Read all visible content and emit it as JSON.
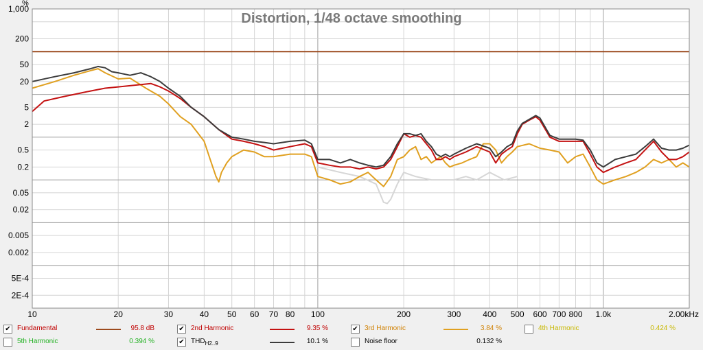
{
  "chart_data": {
    "type": "line",
    "title": "Distortion, 1/48 octave smoothing",
    "ylabel": "%",
    "xlabel": "",
    "x_unit": "kHz",
    "x_scale": "log",
    "y_scale": "log",
    "xlim": [
      10,
      2000
    ],
    "ylim": [
      0.0001,
      1000
    ],
    "grid": true,
    "x_ticks": [
      {
        "v": 10,
        "label": "10"
      },
      {
        "v": 20,
        "label": "20"
      },
      {
        "v": 30,
        "label": "30"
      },
      {
        "v": 40,
        "label": "40"
      },
      {
        "v": 50,
        "label": "50"
      },
      {
        "v": 60,
        "label": "60"
      },
      {
        "v": 70,
        "label": "70"
      },
      {
        "v": 80,
        "label": "80"
      },
      {
        "v": 100,
        "label": "100"
      },
      {
        "v": 200,
        "label": "200"
      },
      {
        "v": 300,
        "label": "300"
      },
      {
        "v": 400,
        "label": "400"
      },
      {
        "v": 500,
        "label": "500"
      },
      {
        "v": 600,
        "label": "600"
      },
      {
        "v": 700,
        "label": "700"
      },
      {
        "v": 800,
        "label": "800"
      },
      {
        "v": 1000,
        "label": "1.0k"
      },
      {
        "v": 2000,
        "label": "2.00kHz"
      }
    ],
    "y_ticks": [
      {
        "v": 1000,
        "label": "1,000"
      },
      {
        "v": 200,
        "label": "200"
      },
      {
        "v": 50,
        "label": "50"
      },
      {
        "v": 20,
        "label": "20"
      },
      {
        "v": 5,
        "label": "5"
      },
      {
        "v": 2,
        "label": "2"
      },
      {
        "v": 0.5,
        "label": "0.5"
      },
      {
        "v": 0.2,
        "label": "0.2"
      },
      {
        "v": 0.05,
        "label": "0.05"
      },
      {
        "v": 0.02,
        "label": "0.02"
      },
      {
        "v": 0.005,
        "label": "0.005"
      },
      {
        "v": 0.002,
        "label": "0.002"
      },
      {
        "v": 0.0005,
        "label": "5E-4"
      },
      {
        "v": 0.0002,
        "label": "2E-4"
      }
    ],
    "series": [
      {
        "name": "Fundamental",
        "color": "#9c4a1e",
        "x": [
          10,
          2000
        ],
        "y": [
          100,
          100
        ]
      },
      {
        "name": "Noise floor",
        "color": "#d6d6d6",
        "x": [
          100,
          120,
          140,
          160,
          170,
          175,
          180,
          190,
          200,
          220,
          250,
          270,
          300,
          330,
          360,
          400,
          450,
          500
        ],
        "y": [
          0.2,
          0.15,
          0.12,
          0.08,
          0.03,
          0.028,
          0.035,
          0.08,
          0.15,
          0.12,
          0.1,
          0.1,
          0.1,
          0.12,
          0.1,
          0.15,
          0.1,
          0.12
        ]
      },
      {
        "name": "3rd Harmonic",
        "color": "#e0a020",
        "x": [
          10,
          12,
          14,
          16,
          17,
          18,
          20,
          22,
          25,
          28,
          30,
          33,
          36,
          40,
          42,
          44,
          45,
          46,
          48,
          50,
          55,
          60,
          65,
          70,
          80,
          90,
          95,
          100,
          110,
          120,
          130,
          140,
          150,
          160,
          170,
          180,
          190,
          200,
          210,
          220,
          230,
          240,
          250,
          260,
          270,
          280,
          290,
          300,
          320,
          340,
          360,
          380,
          400,
          420,
          440,
          460,
          480,
          500,
          550,
          600,
          650,
          700,
          750,
          800,
          850,
          900,
          950,
          1000,
          1100,
          1200,
          1300,
          1400,
          1500,
          1600,
          1700,
          1800,
          1900,
          2000
        ],
        "y": [
          14,
          20,
          28,
          36,
          40,
          32,
          23,
          24,
          14,
          9,
          6,
          3,
          2,
          0.8,
          0.3,
          0.12,
          0.09,
          0.15,
          0.25,
          0.35,
          0.5,
          0.45,
          0.35,
          0.35,
          0.4,
          0.4,
          0.35,
          0.12,
          0.1,
          0.08,
          0.09,
          0.12,
          0.15,
          0.1,
          0.07,
          0.12,
          0.3,
          0.35,
          0.5,
          0.6,
          0.3,
          0.35,
          0.25,
          0.3,
          0.35,
          0.25,
          0.2,
          0.22,
          0.25,
          0.3,
          0.35,
          0.7,
          0.7,
          0.5,
          0.25,
          0.35,
          0.45,
          0.6,
          0.7,
          0.55,
          0.5,
          0.45,
          0.25,
          0.35,
          0.4,
          0.2,
          0.1,
          0.08,
          0.1,
          0.12,
          0.15,
          0.2,
          0.3,
          0.25,
          0.3,
          0.2,
          0.25,
          0.2
        ]
      },
      {
        "name": "2nd Harmonic",
        "color": "#c41212",
        "x": [
          10,
          11,
          12,
          13,
          14,
          15,
          16,
          17,
          18,
          20,
          22,
          24,
          26,
          28,
          30,
          33,
          36,
          40,
          45,
          50,
          55,
          60,
          65,
          70,
          80,
          90,
          95,
          100,
          110,
          120,
          130,
          140,
          150,
          160,
          170,
          180,
          190,
          200,
          210,
          220,
          230,
          240,
          250,
          260,
          270,
          280,
          290,
          300,
          330,
          360,
          400,
          420,
          440,
          460,
          480,
          500,
          520,
          550,
          580,
          600,
          650,
          700,
          750,
          800,
          850,
          900,
          950,
          1000,
          1100,
          1200,
          1300,
          1400,
          1500,
          1600,
          1700,
          1800,
          1900,
          2000
        ],
        "y": [
          4,
          7,
          8,
          9,
          10,
          11,
          12,
          13,
          14,
          15,
          16,
          17,
          18,
          15,
          12,
          8,
          5,
          3,
          1.5,
          0.9,
          0.8,
          0.7,
          0.6,
          0.5,
          0.6,
          0.7,
          0.6,
          0.25,
          0.22,
          0.2,
          0.2,
          0.18,
          0.2,
          0.18,
          0.2,
          0.3,
          0.6,
          1.2,
          1.0,
          1.1,
          1.0,
          0.7,
          0.5,
          0.3,
          0.3,
          0.35,
          0.3,
          0.35,
          0.45,
          0.6,
          0.45,
          0.25,
          0.4,
          0.5,
          0.6,
          1.2,
          2.0,
          2.5,
          3.0,
          2.5,
          1.0,
          0.8,
          0.8,
          0.8,
          0.8,
          0.4,
          0.2,
          0.15,
          0.2,
          0.25,
          0.3,
          0.5,
          0.8,
          0.45,
          0.3,
          0.3,
          0.35,
          0.45
        ]
      },
      {
        "name": "THDH2..9",
        "color": "#3c3c3c",
        "x": [
          10,
          12,
          14,
          16,
          17,
          18,
          19,
          20,
          22,
          24,
          26,
          28,
          30,
          33,
          36,
          40,
          45,
          50,
          55,
          60,
          65,
          70,
          80,
          90,
          95,
          100,
          110,
          120,
          130,
          140,
          150,
          160,
          170,
          180,
          190,
          200,
          210,
          220,
          230,
          240,
          250,
          260,
          270,
          280,
          290,
          300,
          330,
          360,
          400,
          420,
          440,
          460,
          480,
          500,
          520,
          550,
          580,
          600,
          650,
          700,
          750,
          800,
          850,
          900,
          950,
          1000,
          1100,
          1200,
          1300,
          1400,
          1500,
          1600,
          1700,
          1800,
          1900,
          2000
        ],
        "y": [
          20,
          26,
          32,
          40,
          45,
          42,
          34,
          32,
          28,
          32,
          26,
          20,
          14,
          9,
          5,
          3,
          1.5,
          1.0,
          0.9,
          0.8,
          0.75,
          0.7,
          0.8,
          0.85,
          0.7,
          0.3,
          0.3,
          0.25,
          0.3,
          0.25,
          0.22,
          0.2,
          0.22,
          0.35,
          0.7,
          1.2,
          1.2,
          1.1,
          1.2,
          0.8,
          0.6,
          0.4,
          0.35,
          0.4,
          0.35,
          0.4,
          0.55,
          0.7,
          0.55,
          0.35,
          0.45,
          0.6,
          0.7,
          1.4,
          2.1,
          2.6,
          3.2,
          2.8,
          1.1,
          0.9,
          0.9,
          0.9,
          0.85,
          0.5,
          0.25,
          0.2,
          0.3,
          0.35,
          0.4,
          0.6,
          0.9,
          0.55,
          0.5,
          0.5,
          0.55,
          0.65
        ]
      }
    ]
  },
  "legend": {
    "items": [
      {
        "label": "Fundamental",
        "sub": "",
        "value": "95.8 dB",
        "checked": true,
        "color": "#9c4a1e",
        "text_color": "#c00000"
      },
      {
        "label": "2nd Harmonic",
        "sub": "",
        "value": "9.35 %",
        "checked": true,
        "color": "#c41212",
        "text_color": "#c00000"
      },
      {
        "label": "3rd Harmonic",
        "sub": "",
        "value": "3.84 %",
        "checked": true,
        "color": "#e0a020",
        "text_color": "#d08000"
      },
      {
        "label": "4th Harmonic",
        "sub": "",
        "value": "0.424 %",
        "checked": false,
        "color": "#d0c000",
        "text_color": "#c8b800"
      },
      {
        "label": "5th Harmonic",
        "sub": "",
        "value": "0.394 %",
        "checked": false,
        "color": "#20b020",
        "text_color": "#20b020"
      },
      {
        "label": "THD",
        "sub": "H2..9",
        "value": "10.1 %",
        "checked": true,
        "color": "#3c3c3c",
        "text_color": "#000000"
      },
      {
        "label": "Noise floor",
        "sub": "",
        "value": "0.132 %",
        "checked": false,
        "color": "#d6d6d6",
        "text_color": "#000000"
      }
    ]
  }
}
